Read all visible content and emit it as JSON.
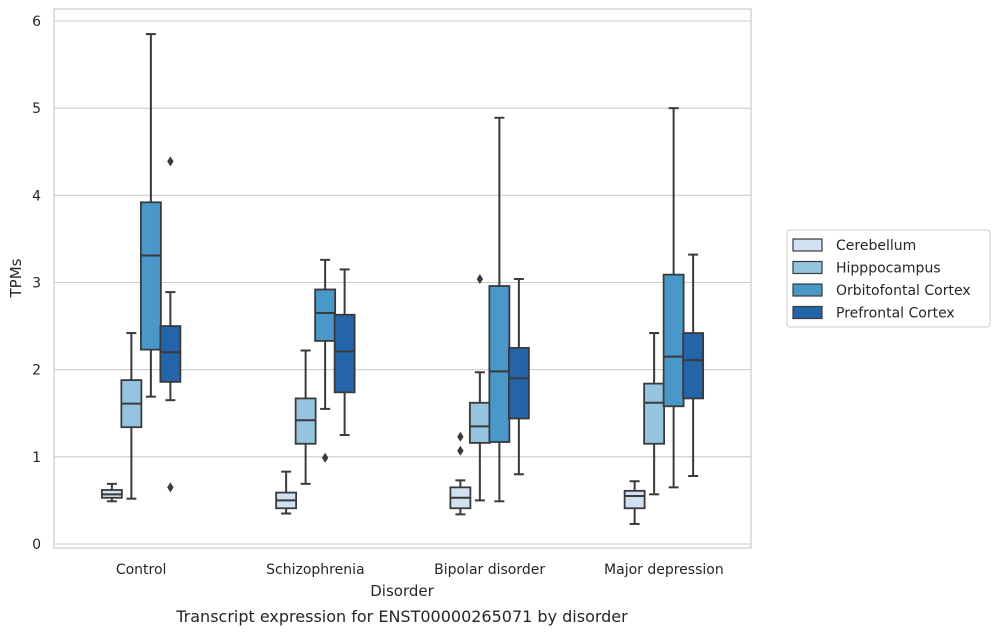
{
  "chart_data": {
    "type": "box",
    "xlabel": "Disorder",
    "ylabel": "TPMs",
    "caption": "Transcript expression for ENST00000265071 by disorder",
    "ylim": [
      -0.05,
      6.15
    ],
    "yticks": [
      0,
      1,
      2,
      3,
      4,
      5,
      6
    ],
    "grid": true,
    "legend_position": "right",
    "categories": [
      "Control",
      "Schizophrenia",
      "Bipolar disorder",
      "Major depression"
    ],
    "series": [
      {
        "name": "Cerebellum",
        "color": "#d0e1f2",
        "boxes": [
          {
            "whislo": 0.49,
            "q1": 0.53,
            "med": 0.57,
            "q3": 0.62,
            "whishi": 0.69,
            "fliers": []
          },
          {
            "whislo": 0.35,
            "q1": 0.41,
            "med": 0.5,
            "q3": 0.59,
            "whishi": 0.83,
            "fliers": []
          },
          {
            "whislo": 0.34,
            "q1": 0.41,
            "med": 0.53,
            "q3": 0.65,
            "whishi": 0.73,
            "fliers": [
              1.07,
              1.23
            ]
          },
          {
            "whislo": 0.23,
            "q1": 0.41,
            "med": 0.55,
            "q3": 0.61,
            "whishi": 0.72,
            "fliers": []
          }
        ]
      },
      {
        "name": "Hipppocampus",
        "color": "#94c4df",
        "boxes": [
          {
            "whislo": 0.52,
            "q1": 1.34,
            "med": 1.61,
            "q3": 1.88,
            "whishi": 2.42,
            "fliers": []
          },
          {
            "whislo": 0.69,
            "q1": 1.15,
            "med": 1.42,
            "q3": 1.67,
            "whishi": 2.22,
            "fliers": []
          },
          {
            "whislo": 0.5,
            "q1": 1.16,
            "med": 1.35,
            "q3": 1.62,
            "whishi": 1.97,
            "fliers": [
              3.04
            ]
          },
          {
            "whislo": 0.57,
            "q1": 1.15,
            "med": 1.62,
            "q3": 1.84,
            "whishi": 2.42,
            "fliers": []
          }
        ]
      },
      {
        "name": "Orbitofontal Cortex",
        "color": "#4a98c9",
        "boxes": [
          {
            "whislo": 1.69,
            "q1": 2.23,
            "med": 3.31,
            "q3": 3.92,
            "whishi": 5.85,
            "fliers": []
          },
          {
            "whislo": 1.55,
            "q1": 2.33,
            "med": 2.65,
            "q3": 2.92,
            "whishi": 3.26,
            "fliers": [
              0.99
            ]
          },
          {
            "whislo": 0.49,
            "q1": 1.17,
            "med": 1.98,
            "q3": 2.96,
            "whishi": 4.89,
            "fliers": []
          },
          {
            "whislo": 0.65,
            "q1": 1.58,
            "med": 2.15,
            "q3": 3.09,
            "whishi": 5.0,
            "fliers": []
          }
        ]
      },
      {
        "name": "Prefrontal Cortex",
        "color": "#2464a8",
        "boxes": [
          {
            "whislo": 1.65,
            "q1": 1.86,
            "med": 2.2,
            "q3": 2.5,
            "whishi": 2.89,
            "fliers": [
              0.65,
              4.39
            ]
          },
          {
            "whislo": 1.25,
            "q1": 1.74,
            "med": 2.21,
            "q3": 2.63,
            "whishi": 3.15,
            "fliers": []
          },
          {
            "whislo": 0.8,
            "q1": 1.44,
            "med": 1.9,
            "q3": 2.25,
            "whishi": 3.04,
            "fliers": []
          },
          {
            "whislo": 0.78,
            "q1": 1.67,
            "med": 2.11,
            "q3": 2.42,
            "whishi": 3.32,
            "fliers": []
          }
        ]
      }
    ]
  }
}
